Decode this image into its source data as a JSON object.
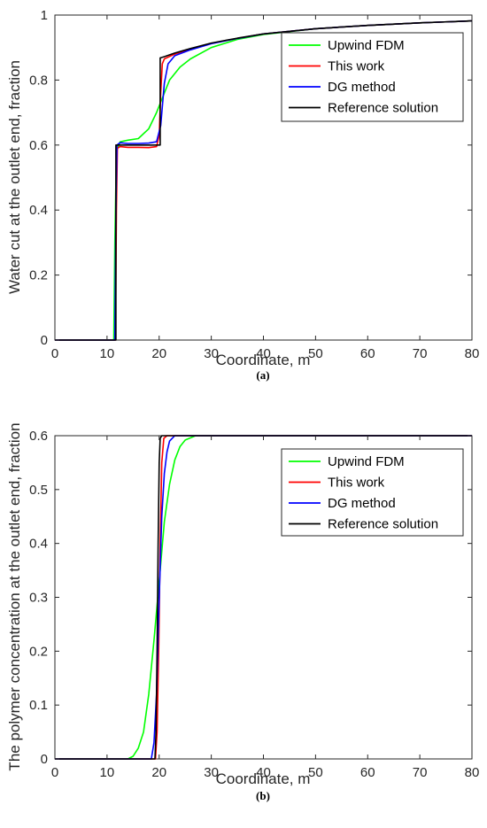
{
  "chart_data": [
    {
      "type": "line",
      "panel_label": "(a)",
      "xlabel": "Coordinate, m",
      "ylabel": "Water cut at the outlet end, fraction",
      "xlim": [
        0,
        80
      ],
      "ylim": [
        0,
        1
      ],
      "xticks": [
        0,
        10,
        20,
        30,
        40,
        50,
        60,
        70,
        80
      ],
      "yticks": [
        0,
        0.2,
        0.4,
        0.6,
        0.8,
        1
      ],
      "ytick_labels": [
        "0",
        "0.2",
        "0.4",
        "0.6",
        "0.8",
        "1"
      ],
      "grid": false,
      "legend": "top-right",
      "series": [
        {
          "name": "Upwind FDM",
          "color": "#00ff00",
          "points": [
            [
              0,
              0
            ],
            [
              11.3,
              0
            ],
            [
              11.5,
              0.3
            ],
            [
              11.8,
              0.58
            ],
            [
              12.5,
              0.61
            ],
            [
              14,
              0.615
            ],
            [
              16,
              0.62
            ],
            [
              18,
              0.65
            ],
            [
              19.5,
              0.7
            ],
            [
              21,
              0.76
            ],
            [
              22,
              0.8
            ],
            [
              24,
              0.84
            ],
            [
              26,
              0.865
            ],
            [
              30,
              0.9
            ],
            [
              35,
              0.925
            ],
            [
              40,
              0.94
            ],
            [
              50,
              0.958
            ],
            [
              60,
              0.968
            ],
            [
              70,
              0.976
            ],
            [
              80,
              0.982
            ]
          ]
        },
        {
          "name": "This work",
          "color": "#ff0000",
          "points": [
            [
              0,
              0
            ],
            [
              11.6,
              0
            ],
            [
              11.8,
              0.4
            ],
            [
              12,
              0.59
            ],
            [
              12.5,
              0.595
            ],
            [
              14,
              0.593
            ],
            [
              16,
              0.593
            ],
            [
              18,
              0.592
            ],
            [
              19.5,
              0.595
            ],
            [
              20,
              0.63
            ],
            [
              20.3,
              0.76
            ],
            [
              20.6,
              0.85
            ],
            [
              21,
              0.865
            ],
            [
              23,
              0.88
            ],
            [
              26,
              0.895
            ],
            [
              30,
              0.913
            ],
            [
              35,
              0.928
            ],
            [
              40,
              0.942
            ],
            [
              50,
              0.958
            ],
            [
              60,
              0.968
            ],
            [
              70,
              0.976
            ],
            [
              80,
              0.982
            ]
          ]
        },
        {
          "name": "DG method",
          "color": "#0000ff",
          "points": [
            [
              0,
              0
            ],
            [
              11.5,
              0
            ],
            [
              11.7,
              0.4
            ],
            [
              11.9,
              0.6
            ],
            [
              12.5,
              0.607
            ],
            [
              14,
              0.605
            ],
            [
              16,
              0.605
            ],
            [
              18,
              0.606
            ],
            [
              19.5,
              0.61
            ],
            [
              20.3,
              0.66
            ],
            [
              21,
              0.79
            ],
            [
              21.7,
              0.85
            ],
            [
              23,
              0.875
            ],
            [
              26,
              0.893
            ],
            [
              30,
              0.912
            ],
            [
              35,
              0.928
            ],
            [
              40,
              0.942
            ],
            [
              50,
              0.958
            ],
            [
              60,
              0.968
            ],
            [
              70,
              0.976
            ],
            [
              80,
              0.982
            ]
          ]
        },
        {
          "name": "Reference solution",
          "color": "#000000",
          "points": [
            [
              0,
              0
            ],
            [
              11.7,
              0
            ],
            [
              11.7,
              0.6
            ],
            [
              14,
              0.6
            ],
            [
              16,
              0.6
            ],
            [
              18,
              0.6
            ],
            [
              20,
              0.6
            ],
            [
              20.2,
              0.6
            ],
            [
              20.2,
              0.868
            ],
            [
              21,
              0.872
            ],
            [
              23,
              0.883
            ],
            [
              26,
              0.897
            ],
            [
              30,
              0.914
            ],
            [
              35,
              0.929
            ],
            [
              40,
              0.942
            ],
            [
              50,
              0.958
            ],
            [
              60,
              0.968
            ],
            [
              70,
              0.976
            ],
            [
              80,
              0.982
            ]
          ]
        }
      ]
    },
    {
      "type": "line",
      "panel_label": "(b)",
      "xlabel": "Coordinate, m",
      "ylabel": "The polymer concentration at the outlet end, fraction",
      "xlim": [
        0,
        80
      ],
      "ylim": [
        0,
        0.6
      ],
      "xticks": [
        0,
        10,
        20,
        30,
        40,
        50,
        60,
        70,
        80
      ],
      "yticks": [
        0,
        0.1,
        0.2,
        0.3,
        0.4,
        0.5,
        0.6
      ],
      "ytick_labels": [
        "0",
        "0.1",
        "0.2",
        "0.3",
        "0.4",
        "0.5",
        "0.6"
      ],
      "grid": false,
      "legend": "top-right",
      "series": [
        {
          "name": "Upwind FDM",
          "color": "#00ff00",
          "points": [
            [
              0,
              0
            ],
            [
              14,
              0
            ],
            [
              15,
              0.005
            ],
            [
              16,
              0.02
            ],
            [
              17,
              0.05
            ],
            [
              18,
              0.12
            ],
            [
              19,
              0.22
            ],
            [
              20,
              0.33
            ],
            [
              21,
              0.44
            ],
            [
              22,
              0.51
            ],
            [
              23,
              0.555
            ],
            [
              24,
              0.58
            ],
            [
              25,
              0.592
            ],
            [
              27,
              0.6
            ],
            [
              80,
              0.6
            ]
          ]
        },
        {
          "name": "This work",
          "color": "#ff0000",
          "points": [
            [
              0,
              0
            ],
            [
              19.3,
              0
            ],
            [
              19.6,
              0.05
            ],
            [
              19.9,
              0.2
            ],
            [
              20.2,
              0.4
            ],
            [
              20.5,
              0.55
            ],
            [
              20.9,
              0.595
            ],
            [
              21.5,
              0.6
            ],
            [
              80,
              0.6
            ]
          ]
        },
        {
          "name": "DG method",
          "color": "#0000ff",
          "points": [
            [
              0,
              0
            ],
            [
              18.5,
              0
            ],
            [
              19,
              0.03
            ],
            [
              19.5,
              0.12
            ],
            [
              20,
              0.3
            ],
            [
              20.5,
              0.45
            ],
            [
              21,
              0.53
            ],
            [
              21.5,
              0.57
            ],
            [
              22,
              0.59
            ],
            [
              23,
              0.6
            ],
            [
              80,
              0.6
            ]
          ]
        },
        {
          "name": "Reference solution",
          "color": "#000000",
          "points": [
            [
              0,
              0
            ],
            [
              19.2,
              0
            ],
            [
              19.4,
              0.05
            ],
            [
              19.6,
              0.2
            ],
            [
              19.8,
              0.4
            ],
            [
              20,
              0.55
            ],
            [
              20.2,
              0.595
            ],
            [
              20.5,
              0.6
            ],
            [
              80,
              0.6
            ]
          ]
        }
      ]
    }
  ]
}
